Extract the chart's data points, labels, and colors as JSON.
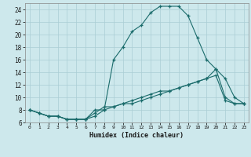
{
  "xlabel": "Humidex (Indice chaleur)",
  "bg_color": "#cde8ec",
  "grid_color": "#aacdd4",
  "line_color": "#1a6b6b",
  "xlim": [
    -0.5,
    23.5
  ],
  "ylim": [
    6,
    25
  ],
  "xticks": [
    0,
    1,
    2,
    3,
    4,
    5,
    6,
    7,
    8,
    9,
    10,
    11,
    12,
    13,
    14,
    15,
    16,
    17,
    18,
    19,
    20,
    21,
    22,
    23
  ],
  "yticks": [
    6,
    8,
    10,
    12,
    14,
    16,
    18,
    20,
    22,
    24
  ],
  "line1_x": [
    0,
    1,
    2,
    3,
    4,
    5,
    6,
    7,
    8,
    9,
    10,
    11,
    12,
    13,
    14,
    15,
    16,
    17,
    18,
    19,
    20,
    21,
    22,
    23
  ],
  "line1_y": [
    8,
    7.5,
    7,
    7,
    6.5,
    6.5,
    6.5,
    8.0,
    8.0,
    16,
    18,
    20.5,
    21.5,
    23.5,
    24.5,
    24.5,
    24.5,
    23,
    19.5,
    16,
    14.5,
    13,
    10,
    9
  ],
  "line2_x": [
    0,
    1,
    2,
    3,
    4,
    5,
    6,
    7,
    8,
    9,
    10,
    11,
    12,
    13,
    14,
    15,
    16,
    17,
    18,
    19,
    20,
    21,
    22,
    23
  ],
  "line2_y": [
    8,
    7.5,
    7,
    7,
    6.5,
    6.5,
    6.5,
    7.5,
    8.5,
    8.5,
    9,
    9.5,
    10,
    10.5,
    11,
    11,
    11.5,
    12,
    12.5,
    13,
    14.5,
    10,
    9,
    9
  ],
  "line3_x": [
    0,
    1,
    2,
    3,
    4,
    5,
    6,
    7,
    8,
    9,
    10,
    11,
    12,
    13,
    14,
    15,
    16,
    17,
    18,
    19,
    20,
    21,
    22,
    23
  ],
  "line3_y": [
    8,
    7.5,
    7,
    7,
    6.5,
    6.5,
    6.5,
    7.0,
    8.0,
    8.5,
    9,
    9,
    9.5,
    10,
    10.5,
    11,
    11.5,
    12,
    12.5,
    13,
    13.5,
    9.5,
    9,
    9
  ]
}
